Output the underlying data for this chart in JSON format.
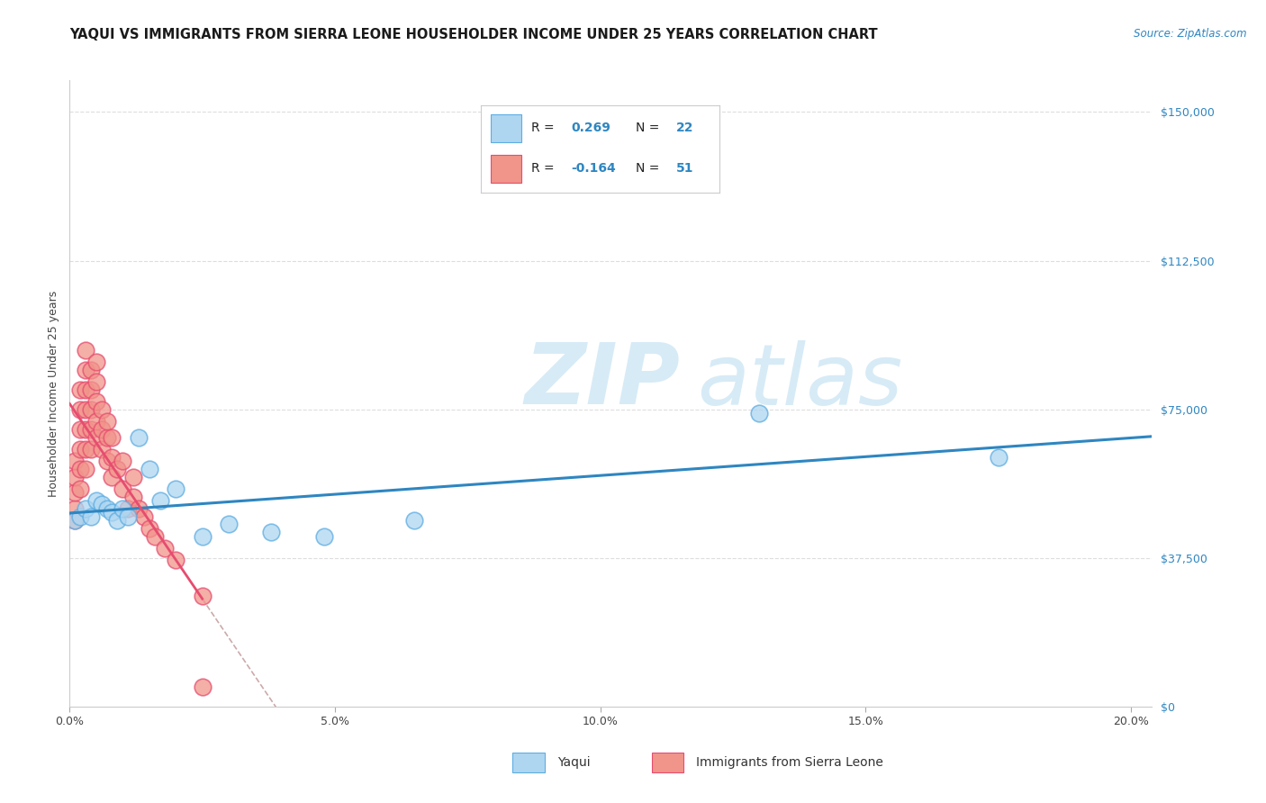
{
  "title": "YAQUI VS IMMIGRANTS FROM SIERRA LEONE HOUSEHOLDER INCOME UNDER 25 YEARS CORRELATION CHART",
  "source": "Source: ZipAtlas.com",
  "ylabel": "Householder Income Under 25 years",
  "xlim": [
    0.0,
    0.204
  ],
  "ylim": [
    0,
    158000
  ],
  "yticks": [
    0,
    37500,
    75000,
    112500,
    150000
  ],
  "ytick_labels": [
    "$0",
    "$37,500",
    "$75,000",
    "$112,500",
    "$150,000"
  ],
  "xticks": [
    0.0,
    0.05,
    0.1,
    0.15,
    0.2
  ],
  "xtick_labels": [
    "0.0%",
    "5.0%",
    "10.0%",
    "15.0%",
    "20.0%"
  ],
  "watermark": "ZIPatlas",
  "yaqui_color": "#AED6F1",
  "yaqui_edge_color": "#5DADE2",
  "sierra_leone_color": "#F1948A",
  "sierra_leone_edge_color": "#E74C6F",
  "yaqui_line_color": "#2E86C1",
  "sierra_leone_line_color": "#C0392B",
  "background_color": "#FFFFFF",
  "grid_color": "#DDDDDD",
  "title_fontsize": 10.5,
  "axis_label_fontsize": 9,
  "tick_fontsize": 9,
  "yaqui_x": [
    0.001,
    0.002,
    0.003,
    0.004,
    0.005,
    0.006,
    0.007,
    0.008,
    0.009,
    0.01,
    0.011,
    0.013,
    0.015,
    0.017,
    0.02,
    0.025,
    0.03,
    0.038,
    0.048,
    0.065,
    0.13,
    0.175
  ],
  "yaqui_y": [
    47000,
    48000,
    50000,
    48000,
    52000,
    51000,
    50000,
    49000,
    47000,
    50000,
    48000,
    68000,
    60000,
    52000,
    55000,
    43000,
    46000,
    44000,
    43000,
    47000,
    74000,
    63000
  ],
  "sierra_leone_x": [
    0.001,
    0.001,
    0.001,
    0.001,
    0.001,
    0.002,
    0.002,
    0.002,
    0.002,
    0.002,
    0.002,
    0.003,
    0.003,
    0.003,
    0.003,
    0.003,
    0.003,
    0.003,
    0.004,
    0.004,
    0.004,
    0.004,
    0.004,
    0.005,
    0.005,
    0.005,
    0.005,
    0.005,
    0.006,
    0.006,
    0.006,
    0.007,
    0.007,
    0.007,
    0.008,
    0.008,
    0.008,
    0.009,
    0.01,
    0.01,
    0.011,
    0.012,
    0.012,
    0.013,
    0.014,
    0.015,
    0.016,
    0.018,
    0.02,
    0.025,
    0.025
  ],
  "sierra_leone_y": [
    50000,
    54000,
    58000,
    62000,
    47000,
    55000,
    60000,
    65000,
    70000,
    75000,
    80000,
    60000,
    65000,
    70000,
    75000,
    80000,
    85000,
    90000,
    65000,
    70000,
    75000,
    80000,
    85000,
    68000,
    72000,
    77000,
    82000,
    87000,
    65000,
    70000,
    75000,
    62000,
    68000,
    72000,
    58000,
    63000,
    68000,
    60000,
    55000,
    62000,
    50000,
    53000,
    58000,
    50000,
    48000,
    45000,
    43000,
    40000,
    37000,
    28000,
    5000
  ]
}
